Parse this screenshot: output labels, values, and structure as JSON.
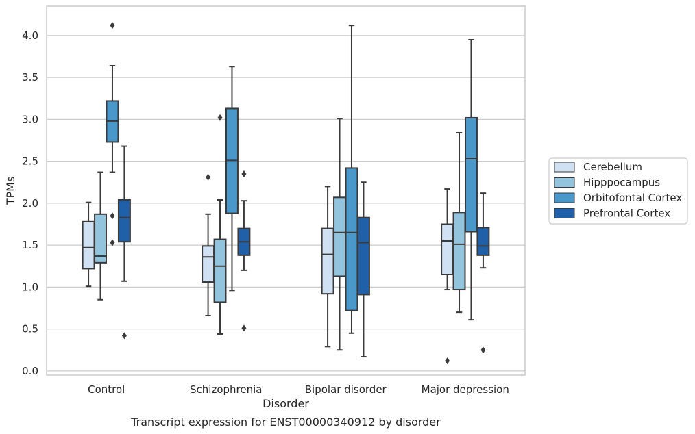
{
  "chart_data": {
    "type": "box",
    "ylabel": "TPMs",
    "xlabel": "Disorder",
    "caption": "Transcript expression for ENST00000340912 by disorder",
    "ylim": [
      -0.05,
      4.35
    ],
    "yticks": [
      "0.0",
      "0.5",
      "1.0",
      "1.5",
      "2.0",
      "2.5",
      "3.0",
      "3.5",
      "4.0"
    ],
    "grid": "horizontal",
    "legend_position": "right",
    "categories": [
      "Control",
      "Schizophrenia",
      "Bipolar disorder",
      "Major depression"
    ],
    "series": [
      {
        "name": "Cerebellum",
        "color": "#cfe1f2",
        "boxes": [
          {
            "whislo": 1.01,
            "q1": 1.22,
            "med": 1.47,
            "q3": 1.78,
            "whishi": 2.01,
            "fliers": []
          },
          {
            "whislo": 0.66,
            "q1": 1.06,
            "med": 1.36,
            "q3": 1.49,
            "whishi": 1.87,
            "fliers": [
              2.31
            ]
          },
          {
            "whislo": 0.29,
            "q1": 0.92,
            "med": 1.39,
            "q3": 1.7,
            "whishi": 2.2,
            "fliers": []
          },
          {
            "whislo": 0.97,
            "q1": 1.15,
            "med": 1.55,
            "q3": 1.75,
            "whishi": 2.17,
            "fliers": [
              0.12
            ]
          }
        ]
      },
      {
        "name": "Hipppocampus",
        "color": "#93c4de",
        "boxes": [
          {
            "whislo": 0.85,
            "q1": 1.29,
            "med": 1.37,
            "q3": 1.87,
            "whishi": 2.37,
            "fliers": []
          },
          {
            "whislo": 0.44,
            "q1": 0.82,
            "med": 1.25,
            "q3": 1.57,
            "whishi": 2.04,
            "fliers": [
              3.02
            ]
          },
          {
            "whislo": 0.25,
            "q1": 1.13,
            "med": 1.65,
            "q3": 2.07,
            "whishi": 3.01,
            "fliers": []
          },
          {
            "whislo": 0.7,
            "q1": 0.97,
            "med": 1.51,
            "q3": 1.89,
            "whishi": 2.84,
            "fliers": []
          }
        ]
      },
      {
        "name": "Orbitofontal Cortex",
        "color": "#4a98c9",
        "boxes": [
          {
            "whislo": 2.37,
            "q1": 2.73,
            "med": 2.98,
            "q3": 3.22,
            "whishi": 3.64,
            "fliers": [
              4.12,
              1.85,
              1.53
            ]
          },
          {
            "whislo": 0.96,
            "q1": 1.88,
            "med": 2.51,
            "q3": 3.13,
            "whishi": 3.63,
            "fliers": []
          },
          {
            "whislo": 0.45,
            "q1": 0.72,
            "med": 1.65,
            "q3": 2.42,
            "whishi": 4.12,
            "fliers": []
          },
          {
            "whislo": 0.61,
            "q1": 1.66,
            "med": 2.53,
            "q3": 3.02,
            "whishi": 3.95,
            "fliers": []
          }
        ]
      },
      {
        "name": "Prefrontal Cortex",
        "color": "#2060a8",
        "boxes": [
          {
            "whislo": 1.07,
            "q1": 1.54,
            "med": 1.83,
            "q3": 2.04,
            "whishi": 2.68,
            "fliers": [
              0.42
            ]
          },
          {
            "whislo": 1.2,
            "q1": 1.38,
            "med": 1.54,
            "q3": 1.7,
            "whishi": 2.03,
            "fliers": [
              2.35,
              0.51
            ]
          },
          {
            "whislo": 0.17,
            "q1": 0.91,
            "med": 1.53,
            "q3": 1.83,
            "whishi": 2.25,
            "fliers": []
          },
          {
            "whislo": 1.23,
            "q1": 1.38,
            "med": 1.49,
            "q3": 1.71,
            "whishi": 2.12,
            "fliers": [
              0.25
            ]
          }
        ]
      }
    ]
  }
}
